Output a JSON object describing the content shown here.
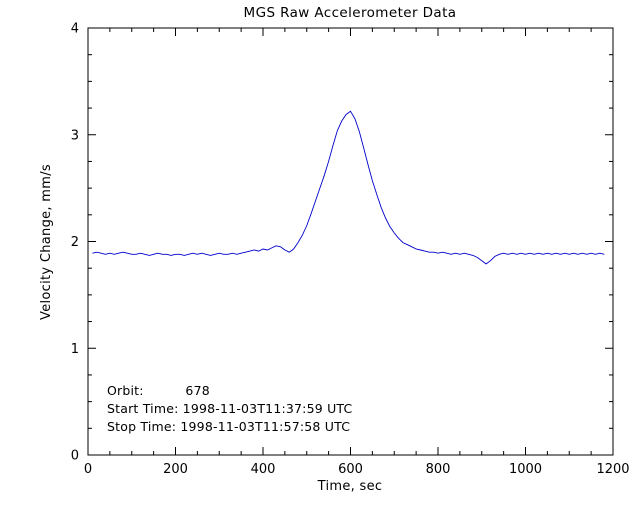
{
  "chart_data": {
    "type": "line",
    "title": "MGS Raw Accelerometer Data",
    "xlabel": "Time, sec",
    "ylabel": "Velocity Change, mm/s",
    "xlim": [
      0,
      1200
    ],
    "ylim": [
      0,
      4
    ],
    "xticks": [
      0,
      200,
      400,
      600,
      800,
      1000,
      1200
    ],
    "yticks": [
      0,
      1,
      2,
      3,
      4
    ],
    "x_minor_step": 50,
    "y_minor_step": 0.25,
    "grid": false,
    "legend": "none",
    "line_color": "#0000cc",
    "axis_color": "#000000",
    "background_color": "#ffffff",
    "annotations": [
      "Orbit:          678",
      "Start Time: 1998-11-03T11:37:59 UTC",
      "Stop Time: 1998-11-03T11:57:58 UTC"
    ],
    "series": [
      {
        "name": "velocity_change",
        "x": [
          10,
          20,
          30,
          40,
          50,
          60,
          70,
          80,
          90,
          100,
          110,
          120,
          130,
          140,
          150,
          160,
          170,
          180,
          190,
          200,
          210,
          220,
          230,
          240,
          250,
          260,
          270,
          280,
          290,
          300,
          310,
          320,
          330,
          340,
          350,
          360,
          370,
          380,
          390,
          400,
          410,
          420,
          430,
          440,
          450,
          460,
          470,
          480,
          490,
          500,
          510,
          520,
          530,
          540,
          550,
          560,
          570,
          580,
          590,
          600,
          610,
          620,
          630,
          640,
          650,
          660,
          670,
          680,
          690,
          700,
          710,
          720,
          730,
          740,
          750,
          760,
          770,
          780,
          790,
          800,
          810,
          820,
          830,
          840,
          850,
          860,
          870,
          880,
          890,
          900,
          910,
          920,
          930,
          940,
          950,
          960,
          970,
          980,
          990,
          1000,
          1010,
          1020,
          1030,
          1040,
          1050,
          1060,
          1070,
          1080,
          1090,
          1100,
          1110,
          1120,
          1130,
          1140,
          1150,
          1160,
          1170,
          1180
        ],
        "y": [
          1.89,
          1.9,
          1.89,
          1.88,
          1.89,
          1.88,
          1.89,
          1.9,
          1.89,
          1.88,
          1.88,
          1.89,
          1.88,
          1.87,
          1.88,
          1.89,
          1.88,
          1.88,
          1.87,
          1.88,
          1.88,
          1.87,
          1.88,
          1.89,
          1.88,
          1.89,
          1.88,
          1.87,
          1.88,
          1.89,
          1.88,
          1.88,
          1.89,
          1.88,
          1.89,
          1.9,
          1.91,
          1.92,
          1.91,
          1.93,
          1.92,
          1.94,
          1.96,
          1.95,
          1.92,
          1.9,
          1.93,
          1.99,
          2.06,
          2.15,
          2.26,
          2.38,
          2.5,
          2.62,
          2.75,
          2.9,
          3.04,
          3.13,
          3.19,
          3.22,
          3.15,
          3.03,
          2.88,
          2.72,
          2.57,
          2.44,
          2.32,
          2.22,
          2.14,
          2.08,
          2.03,
          1.99,
          1.97,
          1.95,
          1.93,
          1.92,
          1.91,
          1.9,
          1.9,
          1.89,
          1.9,
          1.89,
          1.88,
          1.89,
          1.88,
          1.89,
          1.88,
          1.87,
          1.85,
          1.82,
          1.79,
          1.82,
          1.86,
          1.88,
          1.89,
          1.88,
          1.89,
          1.88,
          1.89,
          1.88,
          1.89,
          1.88,
          1.89,
          1.88,
          1.89,
          1.88,
          1.89,
          1.88,
          1.89,
          1.88,
          1.89,
          1.88,
          1.89,
          1.88,
          1.89,
          1.88,
          1.89,
          1.88
        ]
      }
    ]
  }
}
